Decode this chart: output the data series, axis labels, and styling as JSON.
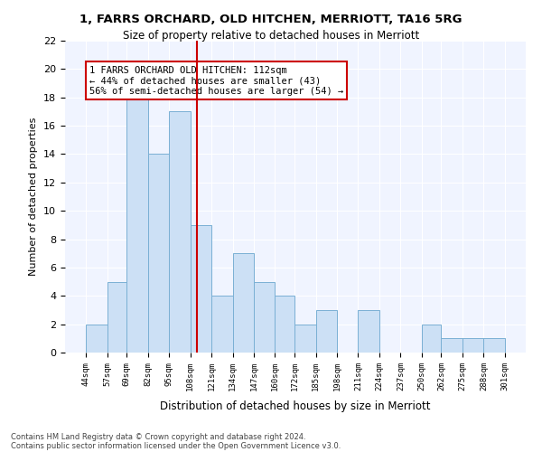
{
  "title1": "1, FARRS ORCHARD, OLD HITCHEN, MERRIOTT, TA16 5RG",
  "title2": "Size of property relative to detached houses in Merriott",
  "xlabel": "Distribution of detached houses by size in Merriott",
  "ylabel": "Number of detached properties",
  "bin_labels": [
    "44sqm",
    "57sqm",
    "69sqm",
    "82sqm",
    "95sqm",
    "108sqm",
    "121sqm",
    "134sqm",
    "147sqm",
    "160sqm",
    "172sqm",
    "185sqm",
    "198sqm",
    "211sqm",
    "224sqm",
    "237sqm",
    "250sqm",
    "262sqm",
    "275sqm",
    "288sqm",
    "301sqm"
  ],
  "bin_edges": [
    44,
    57,
    69,
    82,
    95,
    108,
    121,
    134,
    147,
    160,
    172,
    185,
    198,
    211,
    224,
    237,
    250,
    262,
    275,
    288,
    301
  ],
  "counts": [
    2,
    5,
    18,
    14,
    17,
    9,
    4,
    7,
    5,
    4,
    2,
    3,
    0,
    3,
    0,
    0,
    2,
    1,
    1,
    1
  ],
  "property_size": 112,
  "bar_color": "#cce0f5",
  "bar_edge_color": "#7ab0d4",
  "vline_color": "#cc0000",
  "annotation_text": "1 FARRS ORCHARD OLD HITCHEN: 112sqm\n← 44% of detached houses are smaller (43)\n56% of semi-detached houses are larger (54) →",
  "annotation_box_color": "#ffffff",
  "annotation_border_color": "#cc0000",
  "footer1": "Contains HM Land Registry data © Crown copyright and database right 2024.",
  "footer2": "Contains public sector information licensed under the Open Government Licence v3.0.",
  "ylim": [
    0,
    22
  ],
  "bg_color": "#f0f4ff"
}
